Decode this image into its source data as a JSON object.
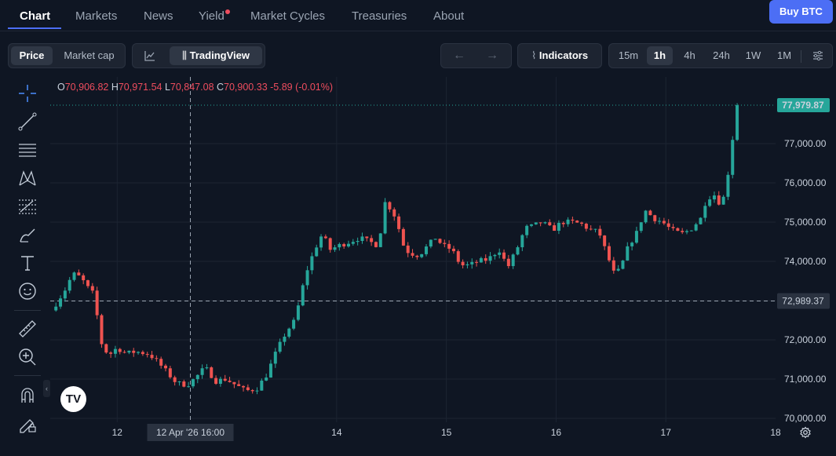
{
  "nav": {
    "tabs": [
      "Chart",
      "Markets",
      "News",
      "Yield",
      "Market Cycles",
      "Treasuries",
      "About"
    ],
    "buy_button": "Buy BTC"
  },
  "toolbar": {
    "metric_tabs": [
      "Price",
      "Market cap"
    ],
    "chart_engine": "TradingView",
    "indicators_label": "Indicators",
    "timeframes": [
      "15m",
      "1h",
      "4h",
      "24h",
      "1W",
      "1M"
    ],
    "active_timeframe": "1h"
  },
  "legend": {
    "o_label": "O",
    "o_value": "70,906.82",
    "h_label": "H",
    "h_value": "70,971.54",
    "l_label": "L",
    "l_value": "70,847.08",
    "c_label": "C",
    "c_value": "70,900.33",
    "change": "-5.89 (-0.01%)"
  },
  "colors": {
    "up": "#26a69a",
    "down": "#ef5350",
    "accent": "#4c6ef5",
    "background": "#0f1623"
  },
  "chart_data": {
    "type": "candlestick",
    "y_axis": {
      "ticks": [
        70000,
        71000,
        72000,
        73000,
        74000,
        75000,
        76000,
        77000
      ],
      "tick_labels": [
        "70,000.00",
        "71,000.00",
        "72,000.00",
        "73,000.00",
        "74,000.00",
        "75,000.00",
        "76,000.00",
        "77,000.00"
      ],
      "range": [
        69900,
        78700
      ]
    },
    "x_axis": {
      "ticks": [
        12,
        14,
        15,
        16,
        17,
        18
      ],
      "tick_labels": [
        "12",
        "14",
        "15",
        "16",
        "17",
        "18"
      ],
      "crosshair_label": "12 Apr '26   16:00",
      "crosshair_time": 12.667,
      "range": [
        11.39,
        18.0
      ]
    },
    "last_price": 77979.87,
    "last_price_label": "77,979.87",
    "crosshair_price": 72989.37,
    "crosshair_price_label": "72,989.37",
    "anchors": [
      [
        11.4,
        72750
      ],
      [
        11.45,
        72950
      ],
      [
        11.53,
        73300
      ],
      [
        11.58,
        73600
      ],
      [
        11.62,
        73700
      ],
      [
        11.69,
        73500
      ],
      [
        11.74,
        73300
      ],
      [
        11.79,
        73150
      ],
      [
        11.85,
        71950
      ],
      [
        11.92,
        71600
      ],
      [
        12.0,
        71800
      ],
      [
        12.08,
        71650
      ],
      [
        12.17,
        71700
      ],
      [
        12.27,
        71650
      ],
      [
        12.33,
        71550
      ],
      [
        12.43,
        71250
      ],
      [
        12.54,
        70900
      ],
      [
        12.64,
        70850
      ],
      [
        12.72,
        71050
      ],
      [
        12.8,
        71300
      ],
      [
        12.9,
        70950
      ],
      [
        12.99,
        71000
      ],
      [
        13.08,
        70850
      ],
      [
        13.17,
        70700
      ],
      [
        13.27,
        70750
      ],
      [
        13.36,
        71100
      ],
      [
        13.45,
        71700
      ],
      [
        13.54,
        72200
      ],
      [
        13.62,
        72500
      ],
      [
        13.72,
        73700
      ],
      [
        13.8,
        74300
      ],
      [
        13.87,
        74700
      ],
      [
        13.94,
        74300
      ],
      [
        14.02,
        74400
      ],
      [
        14.12,
        74500
      ],
      [
        14.21,
        74600
      ],
      [
        14.3,
        74500
      ],
      [
        14.38,
        74400
      ],
      [
        14.44,
        75500
      ],
      [
        14.51,
        75300
      ],
      [
        14.56,
        74900
      ],
      [
        14.62,
        74300
      ],
      [
        14.68,
        74200
      ],
      [
        14.75,
        74150
      ],
      [
        14.83,
        74400
      ],
      [
        14.9,
        74600
      ],
      [
        14.97,
        74400
      ],
      [
        15.05,
        74300
      ],
      [
        15.13,
        73900
      ],
      [
        15.21,
        73900
      ],
      [
        15.29,
        74000
      ],
      [
        15.38,
        74050
      ],
      [
        15.48,
        74300
      ],
      [
        15.56,
        73850
      ],
      [
        15.64,
        74300
      ],
      [
        15.72,
        74850
      ],
      [
        15.79,
        74900
      ],
      [
        15.87,
        75000
      ],
      [
        15.97,
        74800
      ],
      [
        16.05,
        75000
      ],
      [
        16.15,
        75000
      ],
      [
        16.23,
        74950
      ],
      [
        16.31,
        74800
      ],
      [
        16.39,
        74750
      ],
      [
        16.46,
        74200
      ],
      [
        16.54,
        73600
      ],
      [
        16.61,
        74000
      ],
      [
        16.66,
        74400
      ],
      [
        16.73,
        74700
      ],
      [
        16.81,
        75300
      ],
      [
        16.89,
        75100
      ],
      [
        16.97,
        75000
      ],
      [
        17.05,
        74800
      ],
      [
        17.14,
        74700
      ],
      [
        17.22,
        74800
      ],
      [
        17.32,
        75100
      ],
      [
        17.37,
        75600
      ],
      [
        17.44,
        75700
      ],
      [
        17.51,
        75400
      ],
      [
        17.57,
        76300
      ],
      [
        17.63,
        77600
      ],
      [
        17.67,
        77980
      ]
    ]
  }
}
